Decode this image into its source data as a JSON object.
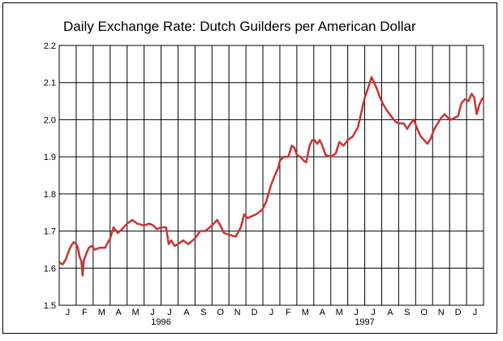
{
  "chart_data": {
    "type": "line",
    "title": "Daily Exchange Rate: Dutch Guilders per American Dollar",
    "xlabel": "",
    "ylabel": "",
    "ylim": [
      1.5,
      2.2
    ],
    "yticks": [
      "1.5",
      "1.6",
      "1.7",
      "1.8",
      "1.9",
      "2.0",
      "2.1",
      "2.2"
    ],
    "month_labels": [
      "J",
      "F",
      "M",
      "A",
      "M",
      "J",
      "J",
      "A",
      "S",
      "O",
      "N",
      "D",
      "J",
      "F",
      "M",
      "A",
      "M",
      "J",
      "J",
      "A",
      "S",
      "O",
      "N",
      "D",
      "J"
    ],
    "year_labels": [
      "1996",
      "1997"
    ],
    "grid": true,
    "line_color": "#cc3333",
    "series": [
      {
        "values": [
          [
            0.0,
            1.615
          ],
          [
            0.2,
            1.61
          ],
          [
            0.4,
            1.625
          ],
          [
            0.55,
            1.645
          ],
          [
            0.7,
            1.66
          ],
          [
            0.85,
            1.67
          ],
          [
            1.0,
            1.665
          ],
          [
            1.1,
            1.655
          ],
          [
            1.2,
            1.63
          ],
          [
            1.3,
            1.62
          ],
          [
            1.38,
            1.58
          ],
          [
            1.45,
            1.62
          ],
          [
            1.6,
            1.64
          ],
          [
            1.75,
            1.655
          ],
          [
            1.9,
            1.66
          ],
          [
            2.1,
            1.65
          ],
          [
            2.4,
            1.655
          ],
          [
            2.7,
            1.655
          ],
          [
            3.0,
            1.68
          ],
          [
            3.2,
            1.71
          ],
          [
            3.45,
            1.695
          ],
          [
            3.7,
            1.705
          ],
          [
            4.0,
            1.72
          ],
          [
            4.3,
            1.73
          ],
          [
            4.6,
            1.72
          ],
          [
            5.0,
            1.715
          ],
          [
            5.3,
            1.72
          ],
          [
            5.55,
            1.715
          ],
          [
            5.75,
            1.705
          ],
          [
            6.0,
            1.71
          ],
          [
            6.3,
            1.71
          ],
          [
            6.45,
            1.665
          ],
          [
            6.6,
            1.675
          ],
          [
            6.8,
            1.66
          ],
          [
            7.0,
            1.665
          ],
          [
            7.3,
            1.675
          ],
          [
            7.6,
            1.665
          ],
          [
            8.0,
            1.68
          ],
          [
            8.3,
            1.7
          ],
          [
            8.6,
            1.7
          ],
          [
            9.0,
            1.715
          ],
          [
            9.3,
            1.73
          ],
          [
            9.5,
            1.715
          ],
          [
            9.7,
            1.695
          ],
          [
            10.0,
            1.69
          ],
          [
            10.4,
            1.685
          ],
          [
            10.7,
            1.71
          ],
          [
            10.9,
            1.745
          ],
          [
            11.1,
            1.735
          ],
          [
            11.35,
            1.74
          ],
          [
            11.6,
            1.745
          ],
          [
            11.9,
            1.755
          ],
          [
            12.0,
            1.76
          ],
          [
            12.2,
            1.78
          ],
          [
            12.45,
            1.82
          ],
          [
            12.7,
            1.85
          ],
          [
            12.9,
            1.87
          ],
          [
            13.0,
            1.89
          ],
          [
            13.25,
            1.9
          ],
          [
            13.5,
            1.9
          ],
          [
            13.7,
            1.93
          ],
          [
            13.85,
            1.925
          ],
          [
            14.0,
            1.905
          ],
          [
            14.2,
            1.9
          ],
          [
            14.4,
            1.89
          ],
          [
            14.55,
            1.885
          ],
          [
            14.75,
            1.93
          ],
          [
            14.9,
            1.945
          ],
          [
            15.05,
            1.945
          ],
          [
            15.2,
            1.935
          ],
          [
            15.35,
            1.945
          ],
          [
            15.5,
            1.93
          ],
          [
            15.7,
            1.905
          ],
          [
            16.0,
            1.9
          ],
          [
            16.3,
            1.91
          ],
          [
            16.5,
            1.94
          ],
          [
            16.75,
            1.93
          ],
          [
            17.0,
            1.945
          ],
          [
            17.3,
            1.955
          ],
          [
            17.6,
            1.98
          ],
          [
            17.8,
            2.02
          ],
          [
            18.0,
            2.06
          ],
          [
            18.2,
            2.085
          ],
          [
            18.4,
            2.115
          ],
          [
            18.55,
            2.1
          ],
          [
            18.7,
            2.085
          ],
          [
            18.9,
            2.06
          ],
          [
            19.1,
            2.04
          ],
          [
            19.3,
            2.025
          ],
          [
            19.55,
            2.01
          ],
          [
            19.8,
            1.995
          ],
          [
            20.0,
            1.99
          ],
          [
            20.3,
            1.99
          ],
          [
            20.5,
            1.975
          ],
          [
            20.7,
            1.99
          ],
          [
            20.9,
            2.0
          ],
          [
            21.1,
            1.975
          ],
          [
            21.3,
            1.955
          ],
          [
            21.5,
            1.945
          ],
          [
            21.7,
            1.935
          ],
          [
            21.9,
            1.95
          ],
          [
            22.1,
            1.975
          ],
          [
            22.3,
            1.99
          ],
          [
            22.5,
            2.005
          ],
          [
            22.7,
            2.015
          ],
          [
            22.9,
            2.005
          ],
          [
            23.1,
            2.0
          ],
          [
            23.3,
            2.005
          ],
          [
            23.5,
            2.01
          ],
          [
            23.7,
            2.045
          ],
          [
            23.9,
            2.055
          ],
          [
            24.1,
            2.05
          ],
          [
            24.3,
            2.07
          ],
          [
            24.45,
            2.06
          ],
          [
            24.6,
            2.015
          ],
          [
            24.75,
            2.04
          ],
          [
            24.9,
            2.055
          ],
          [
            25.0,
            2.06
          ]
        ]
      }
    ]
  }
}
